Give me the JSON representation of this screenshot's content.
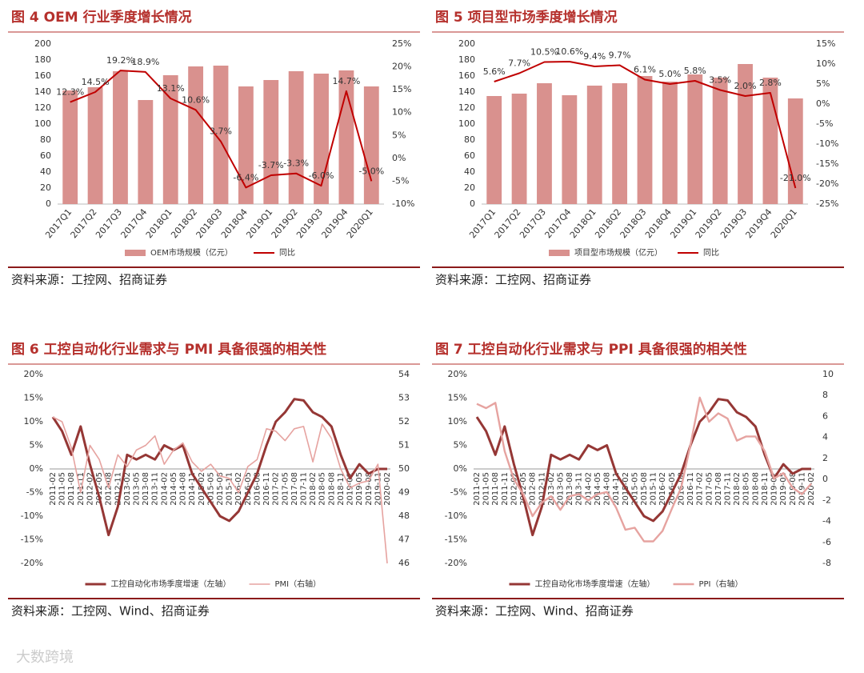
{
  "watermark": "大数跨境",
  "chart_data": [
    {
      "type": "combo",
      "title": "图 4 OEM 行业季度增长情况",
      "source": "资料来源：工控网、招商证券",
      "categories": [
        "2017Q1",
        "2017Q2",
        "2017Q3",
        "2017Q4",
        "2018Q1",
        "2018Q2",
        "2018Q3",
        "2018Q4",
        "2019Q1",
        "2019Q2",
        "2019Q3",
        "2019Q4",
        "2020Q1"
      ],
      "series": [
        {
          "name": "OEM市场规模（亿元）",
          "type": "bar",
          "color": "#d9918e",
          "values": [
            142,
            146,
            166,
            130,
            161,
            172,
            173,
            147,
            155,
            166,
            163,
            167,
            147
          ]
        },
        {
          "name": "同比",
          "type": "line",
          "axis": "y2",
          "color": "#c00000",
          "values": [
            12.3,
            14.5,
            19.2,
            18.9,
            13.1,
            10.6,
            3.7,
            -6.4,
            -3.7,
            -3.3,
            -6.0,
            14.7,
            -5.0
          ],
          "value_labels": [
            "12.3%",
            "14.5%",
            "19.2%",
            "18.9%",
            "13.1%",
            "10.6%",
            "3.7%",
            "-6.4%",
            "-3.7%",
            "-3.3%",
            "-6.0%",
            "14.7%",
            "-5.0%"
          ]
        }
      ],
      "ylim": [
        0,
        200
      ],
      "yticks": [
        0,
        20,
        40,
        60,
        80,
        100,
        120,
        140,
        160,
        180,
        200
      ],
      "y2lim": [
        -10,
        25
      ],
      "y2ticks": [
        {
          "value": -10,
          "label": "-10%"
        },
        {
          "value": -5,
          "label": "-5%"
        },
        {
          "value": 0,
          "label": "0%"
        },
        {
          "value": 5,
          "label": "5%"
        },
        {
          "value": 10,
          "label": "10%"
        },
        {
          "value": 15,
          "label": "15%"
        },
        {
          "value": 20,
          "label": "20%"
        },
        {
          "value": 25,
          "label": "25%"
        }
      ],
      "grid": false
    },
    {
      "type": "combo",
      "title": "图 5 项目型市场季度增长情况",
      "source": "资料来源：工控网、招商证券",
      "categories": [
        "2017Q1",
        "2017Q2",
        "2017Q3",
        "2017Q4",
        "2018Q1",
        "2018Q2",
        "2018Q3",
        "2018Q4",
        "2019Q1",
        "2019Q2",
        "2019Q3",
        "2019Q4",
        "2020Q1"
      ],
      "series": [
        {
          "name": "项目型市场规模（亿元）",
          "type": "bar",
          "color": "#d9918e",
          "values": [
            135,
            138,
            151,
            136,
            148,
            151,
            160,
            153,
            162,
            158,
            175,
            158,
            132
          ]
        },
        {
          "name": "同比",
          "type": "line",
          "axis": "y2",
          "color": "#c00000",
          "values": [
            5.6,
            7.7,
            10.5,
            10.6,
            9.4,
            9.7,
            6.1,
            5.0,
            5.8,
            3.5,
            2.0,
            2.8,
            -21.0
          ],
          "value_labels": [
            "5.6%",
            "7.7%",
            "10.5%",
            "10.6%",
            "9.4%",
            "9.7%",
            "6.1%",
            "5.0%",
            "5.8%",
            "3.5%",
            "2.0%",
            "2.8%",
            "-21.0%"
          ]
        }
      ],
      "ylim": [
        0,
        200
      ],
      "yticks": [
        0,
        20,
        40,
        60,
        80,
        100,
        120,
        140,
        160,
        180,
        200
      ],
      "y2lim": [
        -25,
        15
      ],
      "y2ticks": [
        {
          "value": -25,
          "label": "-25%"
        },
        {
          "value": -20,
          "label": "-20%"
        },
        {
          "value": -15,
          "label": "-15%"
        },
        {
          "value": -10,
          "label": "-10%"
        },
        {
          "value": -5,
          "label": "-5%"
        },
        {
          "value": 0,
          "label": "0%"
        },
        {
          "value": 5,
          "label": "5%"
        },
        {
          "value": 10,
          "label": "10%"
        },
        {
          "value": 15,
          "label": "15%"
        }
      ],
      "grid": false
    },
    {
      "type": "line",
      "title": "图 6 工控自动化行业需求与 PMI 具备很强的相关性",
      "source": "资料来源：工控网、Wind、招商证券",
      "categories": [
        "2011-02",
        "2011-05",
        "2011-08",
        "2011-11",
        "2012-02",
        "2012-05",
        "2012-08",
        "2012-11",
        "2013-02",
        "2013-05",
        "2013-08",
        "2013-11",
        "2014-02",
        "2014-05",
        "2014-08",
        "2014-11",
        "2015-02",
        "2015-05",
        "2015-08",
        "2015-11",
        "2016-02",
        "2016-05",
        "2016-08",
        "2016-11",
        "2017-02",
        "2017-05",
        "2017-08",
        "2017-11",
        "2018-02",
        "2018-05",
        "2018-08",
        "2018-11",
        "2019-02",
        "2019-05",
        "2019-08",
        "2019-11",
        "2020-02"
      ],
      "series": [
        {
          "name": "工控自动化市场季度增速（左轴）",
          "type": "line",
          "color": "#953735",
          "width": 3,
          "values": [
            11,
            8,
            3,
            9,
            1,
            -6,
            -14,
            -8,
            3,
            2,
            3,
            2,
            5,
            4,
            5,
            -1,
            -4,
            -7,
            -10,
            -11,
            -9,
            -5,
            -1,
            5,
            10,
            12,
            14.8,
            14.5,
            12,
            11,
            9,
            3,
            -2,
            1,
            -1,
            0,
            0
          ]
        },
        {
          "name": "PMI（右轴）",
          "type": "line",
          "axis": "y2",
          "color": "#e6a3a0",
          "width": 1.6,
          "values": [
            52.2,
            52,
            50.9,
            49,
            51,
            50.4,
            49.2,
            50.6,
            50.1,
            50.8,
            51,
            51.4,
            50.2,
            50.8,
            51.1,
            50.3,
            49.9,
            50.2,
            49.7,
            49.6,
            49,
            50.1,
            50.4,
            51.7,
            51.6,
            51.2,
            51.7,
            51.8,
            50.3,
            51.9,
            51.3,
            50,
            49.2,
            49.4,
            49.5,
            50.2,
            46
          ]
        }
      ],
      "ylim": [
        -20,
        20
      ],
      "yticks": [
        {
          "value": -20,
          "label": "-20%"
        },
        {
          "value": -15,
          "label": "-15%"
        },
        {
          "value": -10,
          "label": "-10%"
        },
        {
          "value": -5,
          "label": "-5%"
        },
        {
          "value": 0,
          "label": "0%"
        },
        {
          "value": 5,
          "label": "5%"
        },
        {
          "value": 10,
          "label": "10%"
        },
        {
          "value": 15,
          "label": "15%"
        },
        {
          "value": 20,
          "label": "20%"
        }
      ],
      "y2lim": [
        46,
        54
      ],
      "y2ticks": [
        46,
        47,
        48,
        49,
        50,
        51,
        52,
        53,
        54
      ],
      "grid": false
    },
    {
      "type": "line",
      "title": "图 7 工控自动化行业需求与 PPI 具备很强的相关性",
      "source": "资料来源：工控网、Wind、招商证券",
      "categories": [
        "2011-02",
        "2011-05",
        "2011-08",
        "2011-11",
        "2012-02",
        "2012-05",
        "2012-08",
        "2012-11",
        "2013-02",
        "2013-05",
        "2013-08",
        "2013-11",
        "2014-02",
        "2014-05",
        "2014-08",
        "2014-11",
        "2015-02",
        "2015-05",
        "2015-08",
        "2015-11",
        "2016-02",
        "2016-05",
        "2016-08",
        "2016-11",
        "2017-02",
        "2017-05",
        "2017-08",
        "2017-11",
        "2018-02",
        "2018-05",
        "2018-08",
        "2018-11",
        "2019-02",
        "2019-05",
        "2019-08",
        "2019-11",
        "2020-02"
      ],
      "series": [
        {
          "name": "工控自动化市场季度增速（左轴）",
          "type": "line",
          "color": "#953735",
          "width": 3,
          "values": [
            11,
            8,
            3,
            9,
            1,
            -6,
            -14,
            -8,
            3,
            2,
            3,
            2,
            5,
            4,
            5,
            -1,
            -4,
            -7,
            -10,
            -11,
            -9,
            -5,
            -1,
            5,
            10,
            12,
            14.8,
            14.5,
            12,
            11,
            9,
            3,
            -2,
            1,
            -1,
            0,
            0
          ]
        },
        {
          "name": "PPI（右轴）",
          "type": "line",
          "axis": "y2",
          "color": "#e6a3a0",
          "width": 2.4,
          "values": [
            7.2,
            6.8,
            7.3,
            2.7,
            0,
            -1.4,
            -3.5,
            -2.2,
            -1.6,
            -2.9,
            -1.6,
            -1.4,
            -2,
            -1.4,
            -1.2,
            -2.7,
            -4.8,
            -4.6,
            -5.9,
            -5.9,
            -4.9,
            -2.8,
            -0.8,
            3.3,
            7.8,
            5.5,
            6.3,
            5.8,
            3.7,
            4.1,
            4.1,
            2.7,
            0.1,
            0.6,
            -0.8,
            -1.4,
            -0.4
          ]
        }
      ],
      "ylim": [
        -20,
        20
      ],
      "yticks": [
        {
          "value": -20,
          "label": "-20%"
        },
        {
          "value": -15,
          "label": "-15%"
        },
        {
          "value": -10,
          "label": "-10%"
        },
        {
          "value": -5,
          "label": "-5%"
        },
        {
          "value": 0,
          "label": "0%"
        },
        {
          "value": 5,
          "label": "5%"
        },
        {
          "value": 10,
          "label": "10%"
        },
        {
          "value": 15,
          "label": "15%"
        },
        {
          "value": 20,
          "label": "20%"
        }
      ],
      "y2lim": [
        -8,
        10
      ],
      "y2ticks": [
        -8,
        -6,
        -4,
        -2,
        0,
        2,
        4,
        6,
        8,
        10
      ],
      "grid": false
    }
  ]
}
